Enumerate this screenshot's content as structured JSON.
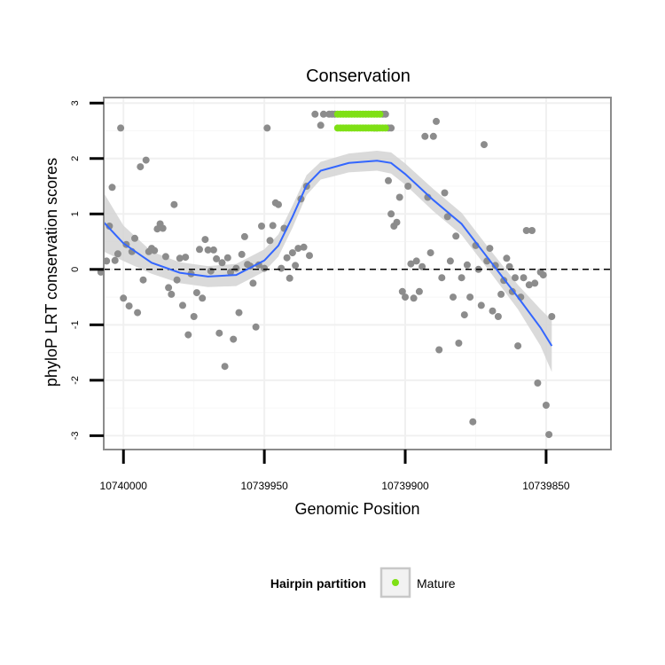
{
  "chart_data": {
    "type": "scatter",
    "title": "Conservation",
    "xlabel": "Genomic Position",
    "ylabel": "phyloP LRT conservation scores",
    "xlim": [
      10740007,
      10739827
    ],
    "ylim": [
      -3.25,
      3.1
    ],
    "x_ticks": [
      10740000,
      10739950,
      10739900,
      10739850
    ],
    "y_ticks": [
      3,
      2,
      1,
      0,
      -1,
      -2,
      -3
    ],
    "y_tick_labels": [
      "3",
      "2",
      "1",
      "0",
      "-1",
      "-2",
      "-3"
    ],
    "x_minor_ticks": [
      10739975,
      10739925,
      10739875
    ],
    "y_minor_ticks": [
      2.5,
      1.5,
      0.5,
      -0.5,
      -1.5,
      -2.5
    ],
    "reference_line_y": 0,
    "colors": {
      "point": "#8c8c8c",
      "mature": "#7fe015",
      "smooth": "#3366ff",
      "ribbon": "#d3d3d3",
      "frame": "#8c8c8c"
    },
    "legend": {
      "title": "Hairpin partition",
      "entries": [
        "Mature"
      ],
      "position": "bottom"
    },
    "series": [
      {
        "name": "scores",
        "points": [
          [
            10740008,
            -0.05
          ],
          [
            10740006,
            0.15
          ],
          [
            10740005,
            0.78
          ],
          [
            10740004,
            1.48
          ],
          [
            10740003,
            0.16
          ],
          [
            10740002,
            0.28
          ],
          [
            10740001,
            2.55
          ],
          [
            10740000,
            -0.52
          ],
          [
            10739999,
            0.45
          ],
          [
            10739998,
            -0.66
          ],
          [
            10739997,
            0.32
          ],
          [
            10739996,
            0.56
          ],
          [
            10739995,
            -0.78
          ],
          [
            10739994,
            1.85
          ],
          [
            10739993,
            -0.19
          ],
          [
            10739992,
            1.97
          ],
          [
            10739991,
            0.32
          ],
          [
            10739990,
            0.38
          ],
          [
            10739989,
            0.34
          ],
          [
            10739988,
            0.73
          ],
          [
            10739987,
            0.82
          ],
          [
            10739986,
            0.74
          ],
          [
            10739985,
            0.23
          ],
          [
            10739984,
            -0.33
          ],
          [
            10739983,
            -0.45
          ],
          [
            10739982,
            1.17
          ],
          [
            10739981,
            -0.19
          ],
          [
            10739980,
            0.2
          ],
          [
            10739979,
            -0.65
          ],
          [
            10739978,
            0.22
          ],
          [
            10739977,
            -1.18
          ],
          [
            10739976,
            -0.08
          ],
          [
            10739975,
            -0.85
          ],
          [
            10739974,
            -0.42
          ],
          [
            10739973,
            0.36
          ],
          [
            10739972,
            -0.52
          ],
          [
            10739971,
            0.54
          ],
          [
            10739970,
            0.35
          ],
          [
            10739969,
            -0.03
          ],
          [
            10739968,
            0.35
          ],
          [
            10739967,
            0.19
          ],
          [
            10739966,
            -1.15
          ],
          [
            10739965,
            0.12
          ],
          [
            10739964,
            -1.75
          ],
          [
            10739963,
            0.21
          ],
          [
            10739962,
            -0.05
          ],
          [
            10739961,
            -1.26
          ],
          [
            10739960,
            0.02
          ],
          [
            10739959,
            -0.78
          ],
          [
            10739958,
            0.27
          ],
          [
            10739957,
            0.59
          ],
          [
            10739956,
            0.09
          ],
          [
            10739955,
            0.06
          ],
          [
            10739954,
            -0.25
          ],
          [
            10739953,
            -1.04
          ],
          [
            10739952,
            0.08
          ],
          [
            10739951,
            0.78
          ],
          [
            10739950,
            0.02
          ],
          [
            10739949,
            2.55
          ],
          [
            10739948,
            0.52
          ],
          [
            10739947,
            0.79
          ],
          [
            10739946,
            1.2
          ],
          [
            10739945,
            1.17
          ],
          [
            10739944,
            0.02
          ],
          [
            10739943,
            0.74
          ],
          [
            10739942,
            0.21
          ],
          [
            10739941,
            -0.16
          ],
          [
            10739940,
            0.3
          ],
          [
            10739939,
            0.07
          ],
          [
            10739938,
            0.38
          ],
          [
            10739937,
            1.27
          ],
          [
            10739936,
            0.4
          ],
          [
            10739935,
            1.5
          ],
          [
            10739934,
            0.25
          ],
          [
            10739930,
            2.6
          ],
          [
            10739929,
            2.8
          ],
          [
            10739906,
            1.6
          ],
          [
            10739905,
            1.0
          ],
          [
            10739904,
            0.78
          ],
          [
            10739903,
            0.85
          ],
          [
            10739902,
            1.3
          ],
          [
            10739901,
            -0.4
          ],
          [
            10739900,
            -0.5
          ],
          [
            10739899,
            1.5
          ],
          [
            10739898,
            0.1
          ],
          [
            10739897,
            -0.52
          ],
          [
            10739896,
            0.15
          ],
          [
            10739895,
            -0.4
          ],
          [
            10739894,
            0.05
          ],
          [
            10739893,
            2.4
          ],
          [
            10739892,
            1.3
          ],
          [
            10739891,
            0.3
          ],
          [
            10739890,
            2.4
          ],
          [
            10739889,
            2.67
          ],
          [
            10739888,
            -1.45
          ],
          [
            10739887,
            -0.15
          ],
          [
            10739886,
            1.38
          ],
          [
            10739885,
            0.95
          ],
          [
            10739884,
            0.15
          ],
          [
            10739883,
            -0.5
          ],
          [
            10739882,
            0.6
          ],
          [
            10739881,
            -1.33
          ],
          [
            10739880,
            -0.15
          ],
          [
            10739879,
            -0.82
          ],
          [
            10739878,
            0.08
          ],
          [
            10739877,
            -0.5
          ],
          [
            10739876,
            -2.75
          ],
          [
            10739875,
            0.43
          ],
          [
            10739874,
            0.0
          ],
          [
            10739873,
            -0.65
          ],
          [
            10739872,
            2.25
          ],
          [
            10739871,
            0.15
          ],
          [
            10739870,
            0.38
          ],
          [
            10739869,
            -0.75
          ],
          [
            10739868,
            0.07
          ],
          [
            10739867,
            -0.85
          ],
          [
            10739866,
            -0.45
          ],
          [
            10739865,
            -0.2
          ],
          [
            10739864,
            0.2
          ],
          [
            10739863,
            0.05
          ],
          [
            10739862,
            -0.4
          ],
          [
            10739861,
            -0.15
          ],
          [
            10739860,
            -1.38
          ],
          [
            10739859,
            -0.5
          ],
          [
            10739858,
            -0.15
          ],
          [
            10739857,
            0.7
          ],
          [
            10739856,
            -0.28
          ],
          [
            10739855,
            0.7
          ],
          [
            10739854,
            -0.25
          ],
          [
            10739853,
            -2.05
          ],
          [
            10739852,
            -0.05
          ],
          [
            10739851,
            -0.1
          ],
          [
            10739850,
            -2.45
          ],
          [
            10739849,
            -2.98
          ],
          [
            10739848,
            -0.85
          ]
        ]
      },
      {
        "name": "upper_cap",
        "points": [
          [
            10739932,
            2.8
          ],
          [
            10739927,
            2.8
          ],
          [
            10739926,
            2.8
          ],
          [
            10739925,
            2.8
          ],
          [
            10739908,
            2.8
          ],
          [
            10739907,
            2.8
          ],
          [
            10739911,
            2.55
          ],
          [
            10739910,
            2.55
          ],
          [
            10739906,
            2.55
          ],
          [
            10739905,
            2.55
          ]
        ]
      },
      {
        "name": "Mature",
        "points": [
          [
            10739924,
            2.8
          ],
          [
            10739923,
            2.8
          ],
          [
            10739922,
            2.8
          ],
          [
            10739921,
            2.8
          ],
          [
            10739920,
            2.8
          ],
          [
            10739919,
            2.8
          ],
          [
            10739918,
            2.8
          ],
          [
            10739917,
            2.8
          ],
          [
            10739916,
            2.8
          ],
          [
            10739915,
            2.8
          ],
          [
            10739914,
            2.8
          ],
          [
            10739913,
            2.8
          ],
          [
            10739912,
            2.8
          ],
          [
            10739911,
            2.8
          ],
          [
            10739910,
            2.8
          ],
          [
            10739909,
            2.8
          ],
          [
            10739924,
            2.55
          ],
          [
            10739923,
            2.55
          ],
          [
            10739922,
            2.55
          ],
          [
            10739921,
            2.55
          ],
          [
            10739920,
            2.55
          ],
          [
            10739919,
            2.55
          ],
          [
            10739918,
            2.55
          ],
          [
            10739917,
            2.55
          ],
          [
            10739916,
            2.55
          ],
          [
            10739915,
            2.55
          ],
          [
            10739914,
            2.55
          ],
          [
            10739913,
            2.55
          ],
          [
            10739912,
            2.55
          ],
          [
            10739911,
            2.55
          ],
          [
            10739910,
            2.55
          ],
          [
            10739909,
            2.55
          ],
          [
            10739908,
            2.55
          ],
          [
            10739907,
            2.55
          ]
        ]
      }
    ],
    "smooth": [
      [
        10740007,
        0.85,
        0.32,
        1.38
      ],
      [
        10740000,
        0.47,
        0.15,
        0.79
      ],
      [
        10739990,
        0.12,
        -0.08,
        0.32
      ],
      [
        10739980,
        -0.06,
        -0.25,
        0.13
      ],
      [
        10739970,
        -0.13,
        -0.32,
        0.06
      ],
      [
        10739960,
        -0.1,
        -0.3,
        0.1
      ],
      [
        10739950,
        0.16,
        -0.04,
        0.36
      ],
      [
        10739945,
        0.43,
        0.23,
        0.63
      ],
      [
        10739940,
        0.95,
        0.75,
        1.15
      ],
      [
        10739935,
        1.52,
        1.34,
        1.7
      ],
      [
        10739930,
        1.78,
        1.62,
        1.94
      ],
      [
        10739920,
        1.92,
        1.75,
        2.09
      ],
      [
        10739910,
        1.96,
        1.78,
        2.14
      ],
      [
        10739905,
        1.92,
        1.73,
        2.11
      ],
      [
        10739900,
        1.72,
        1.53,
        1.91
      ],
      [
        10739890,
        1.25,
        1.05,
        1.45
      ],
      [
        10739880,
        0.82,
        0.62,
        1.02
      ],
      [
        10739870,
        0.16,
        -0.04,
        0.36
      ],
      [
        10739860,
        -0.5,
        -0.72,
        -0.28
      ],
      [
        10739852,
        -1.05,
        -1.38,
        -0.72
      ],
      [
        10739848,
        -1.38,
        -1.85,
        -0.92
      ]
    ]
  }
}
